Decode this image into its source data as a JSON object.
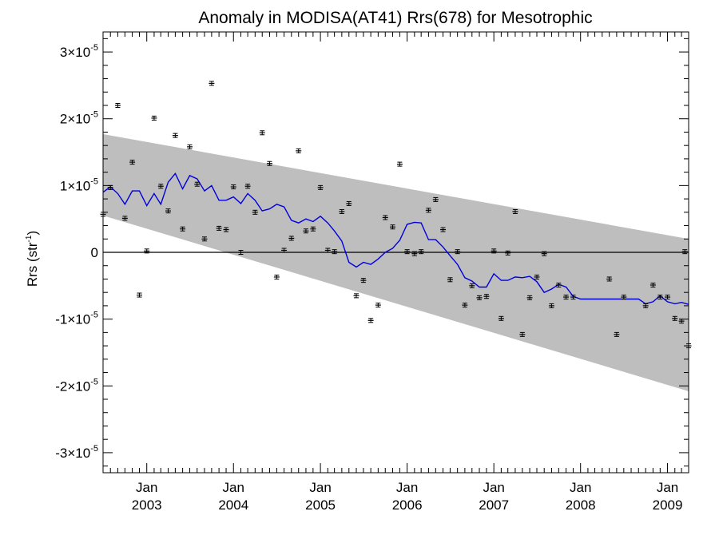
{
  "chart_data": {
    "type": "scatter",
    "title": "Anomaly in MODISA(AT41) Rrs(678) for Mesotrophic",
    "ylabel": "Rrs (str",
    "ylabel_sup": "-1",
    "ylabel_close": ")",
    "x_range": [
      "2002-07-01",
      "2009-03-31"
    ],
    "ylim": [
      -3.3e-05,
      3.3e-05
    ],
    "y_ticks": [
      {
        "value": 3e-05,
        "mantissa": "3×10",
        "exp": "-5"
      },
      {
        "value": 2e-05,
        "mantissa": "2×10",
        "exp": "-5"
      },
      {
        "value": 1e-05,
        "mantissa": "1×10",
        "exp": "-5"
      },
      {
        "value": 0,
        "mantissa": "0",
        "exp": ""
      },
      {
        "value": -1e-05,
        "mantissa": "-1×10",
        "exp": "-5"
      },
      {
        "value": -2e-05,
        "mantissa": "-2×10",
        "exp": "-5"
      },
      {
        "value": -3e-05,
        "mantissa": "-3×10",
        "exp": "-5"
      }
    ],
    "x_ticks": [
      {
        "date": "2003-01-01",
        "month": "Jan",
        "year": "2003"
      },
      {
        "date": "2004-01-01",
        "month": "Jan",
        "year": "2004"
      },
      {
        "date": "2005-01-01",
        "month": "Jan",
        "year": "2005"
      },
      {
        "date": "2006-01-01",
        "month": "Jan",
        "year": "2006"
      },
      {
        "date": "2007-01-01",
        "month": "Jan",
        "year": "2007"
      },
      {
        "date": "2008-01-01",
        "month": "Jan",
        "year": "2008"
      },
      {
        "date": "2009-01-01",
        "month": "Jan",
        "year": "2009"
      }
    ],
    "grid": false,
    "zero_line": 0,
    "colors": {
      "band": "#bebebe",
      "running_mean": "#0000dd",
      "points": "#000000",
      "axes": "#000000"
    },
    "confidence_band": {
      "start": {
        "date": "2002-07-01",
        "upper": 1.77e-05,
        "lower": 5.5e-06
      },
      "end": {
        "date": "2009-03-31",
        "upper": 2e-06,
        "lower": -2.08e-05
      }
    },
    "observations": [
      {
        "date": "2002-07-01",
        "y": 5.7e-06
      },
      {
        "date": "2002-08-01",
        "y": 9.7e-06
      },
      {
        "date": "2002-09-01",
        "y": 2.2e-05
      },
      {
        "date": "2002-10-01",
        "y": 5.1e-06
      },
      {
        "date": "2002-11-01",
        "y": 1.35e-05
      },
      {
        "date": "2002-12-01",
        "y": -6.4e-06
      },
      {
        "date": "2003-01-01",
        "y": 2e-07
      },
      {
        "date": "2003-02-01",
        "y": 2.01e-05
      },
      {
        "date": "2003-03-01",
        "y": 9.9e-06
      },
      {
        "date": "2003-04-01",
        "y": 6.2e-06
      },
      {
        "date": "2003-05-01",
        "y": 1.75e-05
      },
      {
        "date": "2003-06-01",
        "y": 3.5e-06
      },
      {
        "date": "2003-07-01",
        "y": 1.58e-05
      },
      {
        "date": "2003-08-01",
        "y": 1.02e-05
      },
      {
        "date": "2003-09-01",
        "y": 2e-06
      },
      {
        "date": "2003-10-01",
        "y": 2.53e-05
      },
      {
        "date": "2003-11-01",
        "y": 3.6e-06
      },
      {
        "date": "2003-12-01",
        "y": 3.4e-06
      },
      {
        "date": "2004-01-01",
        "y": 9.8e-06
      },
      {
        "date": "2004-02-01",
        "y": 0.0
      },
      {
        "date": "2004-03-01",
        "y": 9.9e-06
      },
      {
        "date": "2004-04-01",
        "y": 6e-06
      },
      {
        "date": "2004-05-01",
        "y": 1.79e-05
      },
      {
        "date": "2004-06-01",
        "y": 1.33e-05
      },
      {
        "date": "2004-07-01",
        "y": -3.7e-06
      },
      {
        "date": "2004-08-01",
        "y": 3e-07
      },
      {
        "date": "2004-09-01",
        "y": 2.1e-06
      },
      {
        "date": "2004-10-01",
        "y": 1.52e-05
      },
      {
        "date": "2004-11-01",
        "y": 3.2e-06
      },
      {
        "date": "2004-12-01",
        "y": 3.5e-06
      },
      {
        "date": "2005-01-01",
        "y": 9.7e-06
      },
      {
        "date": "2005-02-01",
        "y": 3e-07
      },
      {
        "date": "2005-03-01",
        "y": 1e-07
      },
      {
        "date": "2005-04-01",
        "y": 6.1e-06
      },
      {
        "date": "2005-05-01",
        "y": 7.3e-06
      },
      {
        "date": "2005-06-01",
        "y": -6.5e-06
      },
      {
        "date": "2005-07-01",
        "y": -4.2e-06
      },
      {
        "date": "2005-08-01",
        "y": -1.02e-05
      },
      {
        "date": "2005-09-01",
        "y": -7.9e-06
      },
      {
        "date": "2005-10-01",
        "y": 5.2e-06
      },
      {
        "date": "2005-11-01",
        "y": 3.8e-06
      },
      {
        "date": "2005-12-01",
        "y": 1.32e-05
      },
      {
        "date": "2006-01-01",
        "y": 1e-07
      },
      {
        "date": "2006-02-01",
        "y": -2e-07
      },
      {
        "date": "2006-03-01",
        "y": 1e-07
      },
      {
        "date": "2006-04-01",
        "y": 6.3e-06
      },
      {
        "date": "2006-05-01",
        "y": 7.9e-06
      },
      {
        "date": "2006-06-01",
        "y": 3.4e-06
      },
      {
        "date": "2006-07-01",
        "y": -4.1e-06
      },
      {
        "date": "2006-08-01",
        "y": 1e-07
      },
      {
        "date": "2006-09-01",
        "y": -7.9e-06
      },
      {
        "date": "2006-10-01",
        "y": -5e-06
      },
      {
        "date": "2006-11-01",
        "y": -6.8e-06
      },
      {
        "date": "2006-12-01",
        "y": -6.6e-06
      },
      {
        "date": "2007-01-01",
        "y": 2e-07
      },
      {
        "date": "2007-02-01",
        "y": -9.9e-06
      },
      {
        "date": "2007-03-01",
        "y": -1e-07
      },
      {
        "date": "2007-04-01",
        "y": 6.1e-06
      },
      {
        "date": "2007-05-01",
        "y": -1.23e-05
      },
      {
        "date": "2007-06-01",
        "y": -6.8e-06
      },
      {
        "date": "2007-07-01",
        "y": -3.7e-06
      },
      {
        "date": "2007-08-01",
        "y": -2e-07
      },
      {
        "date": "2007-09-01",
        "y": -8e-06
      },
      {
        "date": "2007-10-01",
        "y": -4.9e-06
      },
      {
        "date": "2007-11-01",
        "y": -6.7e-06
      },
      {
        "date": "2007-12-01",
        "y": -6.7e-06
      },
      {
        "date": "2008-05-01",
        "y": -4e-06
      },
      {
        "date": "2008-06-01",
        "y": -1.23e-05
      },
      {
        "date": "2008-07-01",
        "y": -6.7e-06
      },
      {
        "date": "2008-10-01",
        "y": -8e-06
      },
      {
        "date": "2008-11-01",
        "y": -4.9e-06
      },
      {
        "date": "2008-12-01",
        "y": -6.7e-06
      },
      {
        "date": "2009-01-01",
        "y": -6.7e-06
      },
      {
        "date": "2009-02-01",
        "y": -9.9e-06
      },
      {
        "date": "2009-03-01",
        "y": -1.03e-05
      },
      {
        "date": "2009-03-15",
        "y": 1e-07
      },
      {
        "date": "2009-03-31",
        "y": -1.4e-05
      }
    ],
    "running_mean": [
      {
        "date": "2002-07-01",
        "y": 9e-06
      },
      {
        "date": "2002-08-01",
        "y": 9.8e-06
      },
      {
        "date": "2002-09-01",
        "y": 8.8e-06
      },
      {
        "date": "2002-10-01",
        "y": 7.2e-06
      },
      {
        "date": "2002-11-01",
        "y": 9.2e-06
      },
      {
        "date": "2002-12-01",
        "y": 9.2e-06
      },
      {
        "date": "2003-01-01",
        "y": 7e-06
      },
      {
        "date": "2003-02-01",
        "y": 8.8e-06
      },
      {
        "date": "2003-03-01",
        "y": 7.2e-06
      },
      {
        "date": "2003-04-01",
        "y": 1.05e-05
      },
      {
        "date": "2003-05-01",
        "y": 1.18e-05
      },
      {
        "date": "2003-06-01",
        "y": 9.5e-06
      },
      {
        "date": "2003-07-01",
        "y": 1.15e-05
      },
      {
        "date": "2003-08-01",
        "y": 1.1e-05
      },
      {
        "date": "2003-09-01",
        "y": 9.2e-06
      },
      {
        "date": "2003-10-01",
        "y": 1e-05
      },
      {
        "date": "2003-11-01",
        "y": 7.8e-06
      },
      {
        "date": "2003-12-01",
        "y": 7.8e-06
      },
      {
        "date": "2004-01-01",
        "y": 8.3e-06
      },
      {
        "date": "2004-02-01",
        "y": 7.3e-06
      },
      {
        "date": "2004-03-01",
        "y": 8.8e-06
      },
      {
        "date": "2004-04-01",
        "y": 7.8e-06
      },
      {
        "date": "2004-05-01",
        "y": 6.2e-06
      },
      {
        "date": "2004-06-01",
        "y": 6.5e-06
      },
      {
        "date": "2004-07-01",
        "y": 7.2e-06
      },
      {
        "date": "2004-08-01",
        "y": 6.8e-06
      },
      {
        "date": "2004-09-01",
        "y": 4.8e-06
      },
      {
        "date": "2004-10-01",
        "y": 4.4e-06
      },
      {
        "date": "2004-11-01",
        "y": 5e-06
      },
      {
        "date": "2004-12-01",
        "y": 4.6e-06
      },
      {
        "date": "2005-01-01",
        "y": 5.4e-06
      },
      {
        "date": "2005-02-01",
        "y": 4.4e-06
      },
      {
        "date": "2005-03-01",
        "y": 3.2e-06
      },
      {
        "date": "2005-04-01",
        "y": 1.7e-06
      },
      {
        "date": "2005-05-01",
        "y": -1.5e-06
      },
      {
        "date": "2005-06-01",
        "y": -2.2e-06
      },
      {
        "date": "2005-07-01",
        "y": -1.5e-06
      },
      {
        "date": "2005-08-01",
        "y": -1.8e-06
      },
      {
        "date": "2005-09-01",
        "y": -1e-06
      },
      {
        "date": "2005-10-01",
        "y": 0.0
      },
      {
        "date": "2005-11-01",
        "y": 6e-07
      },
      {
        "date": "2005-12-01",
        "y": 1.8e-06
      },
      {
        "date": "2006-01-01",
        "y": 4.2e-06
      },
      {
        "date": "2006-02-01",
        "y": 4.5e-06
      },
      {
        "date": "2006-03-01",
        "y": 4.4e-06
      },
      {
        "date": "2006-04-01",
        "y": 1.9e-06
      },
      {
        "date": "2006-05-01",
        "y": 1.9e-06
      },
      {
        "date": "2006-06-01",
        "y": 8e-07
      },
      {
        "date": "2006-07-01",
        "y": -5e-07
      },
      {
        "date": "2006-08-01",
        "y": -1.8e-06
      },
      {
        "date": "2006-09-01",
        "y": -3.8e-06
      },
      {
        "date": "2006-10-01",
        "y": -4.3e-06
      },
      {
        "date": "2006-11-01",
        "y": -5.2e-06
      },
      {
        "date": "2006-12-01",
        "y": -5.2e-06
      },
      {
        "date": "2007-01-01",
        "y": -3.2e-06
      },
      {
        "date": "2007-02-01",
        "y": -4.2e-06
      },
      {
        "date": "2007-03-01",
        "y": -4.2e-06
      },
      {
        "date": "2007-04-01",
        "y": -3.7e-06
      },
      {
        "date": "2007-05-01",
        "y": -3.8e-06
      },
      {
        "date": "2007-06-01",
        "y": -3.6e-06
      },
      {
        "date": "2007-07-01",
        "y": -4.4e-06
      },
      {
        "date": "2007-08-01",
        "y": -6e-06
      },
      {
        "date": "2007-09-01",
        "y": -5.5e-06
      },
      {
        "date": "2007-10-01",
        "y": -4.8e-06
      },
      {
        "date": "2007-11-01",
        "y": -5.2e-06
      },
      {
        "date": "2007-12-01",
        "y": -6.6e-06
      },
      {
        "date": "2008-01-01",
        "y": -7e-06
      },
      {
        "date": "2008-09-01",
        "y": -7e-06
      },
      {
        "date": "2008-10-01",
        "y": -7.7e-06
      },
      {
        "date": "2008-11-01",
        "y": -7.4e-06
      },
      {
        "date": "2008-12-01",
        "y": -6.5e-06
      },
      {
        "date": "2009-01-01",
        "y": -7.4e-06
      },
      {
        "date": "2009-02-01",
        "y": -7.7e-06
      },
      {
        "date": "2009-03-01",
        "y": -7.5e-06
      },
      {
        "date": "2009-03-31",
        "y": -7.8e-06
      }
    ]
  }
}
